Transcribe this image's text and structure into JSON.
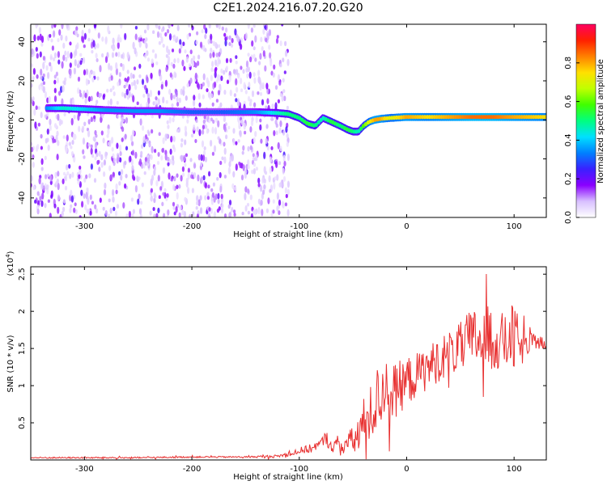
{
  "title": "C2E1.2024.216.07.20.G20",
  "colors": {
    "snr_line": "#e83030",
    "ridge_low": "#5a00ff",
    "ridge_mid": "#1ec8ff",
    "ridge_high": "#ff2020"
  },
  "chart_data": [
    {
      "type": "heatmap",
      "xlabel": "Height of straight line (km)",
      "ylabel": "Frequency (Hz)",
      "xlim": [
        -350,
        130
      ],
      "ylim": [
        -50,
        49
      ],
      "xticks": [
        -300,
        -200,
        -100,
        0,
        100
      ],
      "yticks": [
        -40,
        -20,
        0,
        20,
        40
      ],
      "colorbar": {
        "label": "Normalized spectral amplitude",
        "range": [
          0.0,
          1.0
        ],
        "ticks": [
          "0.0",
          "0.2",
          "0.4",
          "0.6",
          "0.8"
        ],
        "colormap": [
          "#ffffff",
          "#d8c0ff",
          "#8a00ff",
          "#3a20ff",
          "#0080ff",
          "#00e0ff",
          "#00ff80",
          "#40ff00",
          "#c0ff00",
          "#ffe000",
          "#ff8000",
          "#ff2000",
          "#ff0060"
        ]
      },
      "ridge": {
        "x": [
          -335,
          -320,
          -300,
          -280,
          -250,
          -230,
          -200,
          -170,
          -140,
          -120,
          -110,
          -100,
          -92,
          -85,
          -78,
          -70,
          -62,
          -55,
          -50,
          -45,
          -40,
          -35,
          -30,
          -25,
          -15,
          0,
          20,
          40,
          60,
          80,
          100,
          130
        ],
        "frequency": [
          6,
          6,
          5.5,
          5,
          4.5,
          4.5,
          4,
          4,
          4,
          3.5,
          3,
          1,
          -2,
          -3,
          1,
          -1,
          -3,
          -5,
          -6,
          -6,
          -3,
          -1,
          0,
          0.5,
          1,
          1.5,
          1.5,
          1.5,
          1.5,
          1.5,
          1.5,
          1.5
        ],
        "amplitude": [
          0.35,
          0.45,
          0.4,
          0.35,
          0.35,
          0.35,
          0.3,
          0.3,
          0.35,
          0.45,
          0.5,
          0.5,
          0.55,
          0.5,
          0.45,
          0.55,
          0.5,
          0.55,
          0.5,
          0.45,
          0.6,
          0.7,
          0.8,
          0.8,
          0.7,
          0.8,
          0.75,
          0.8,
          0.85,
          0.85,
          0.8,
          0.75
        ]
      }
    },
    {
      "type": "line",
      "xlabel": "Height of straight line (km)",
      "ylabel": "SNR (10 * v/v)",
      "y_multiplier": "(x10",
      "y_multiplier_exp": "4",
      "y_multiplier_close": ")",
      "xlim": [
        -350,
        130
      ],
      "ylim": [
        0,
        2.6
      ],
      "xticks": [
        -300,
        -200,
        -100,
        0,
        100
      ],
      "yticks": [
        0.5,
        1.0,
        1.5,
        2.0,
        2.5
      ],
      "series": [
        {
          "x": [
            -350,
            -300,
            -250,
            -200,
            -150,
            -120,
            -110,
            -100,
            -90,
            -80,
            -75,
            -70,
            -60,
            -50,
            -45,
            -40,
            -35,
            -30,
            -25,
            -20,
            -15,
            -10,
            0,
            10,
            20,
            30,
            40,
            50,
            55,
            60,
            65,
            70,
            75,
            80,
            85,
            90,
            95,
            100,
            105,
            110,
            120,
            130
          ],
          "y": [
            0.03,
            0.03,
            0.03,
            0.04,
            0.04,
            0.05,
            0.08,
            0.12,
            0.15,
            0.22,
            0.3,
            0.18,
            0.2,
            0.25,
            0.35,
            0.45,
            0.55,
            0.75,
            0.85,
            1.0,
            0.9,
            0.95,
            1.05,
            1.15,
            1.25,
            1.35,
            1.45,
            1.5,
            1.55,
            1.6,
            1.65,
            1.6,
            1.62,
            1.65,
            1.6,
            1.58,
            1.6,
            1.65,
            1.55,
            1.5,
            1.6,
            1.55
          ],
          "noise": [
            0.01,
            0.01,
            0.01,
            0.01,
            0.01,
            0.02,
            0.03,
            0.05,
            0.06,
            0.06,
            0.1,
            0.08,
            0.12,
            0.2,
            0.3,
            0.4,
            0.4,
            0.45,
            0.45,
            0.4,
            0.4,
            0.35,
            0.35,
            0.3,
            0.3,
            0.3,
            0.3,
            0.35,
            0.4,
            0.45,
            0.4,
            0.45,
            0.45,
            0.45,
            0.4,
            0.4,
            0.4,
            0.5,
            0.3,
            0.2,
            0.1,
            0.1
          ]
        }
      ]
    }
  ]
}
